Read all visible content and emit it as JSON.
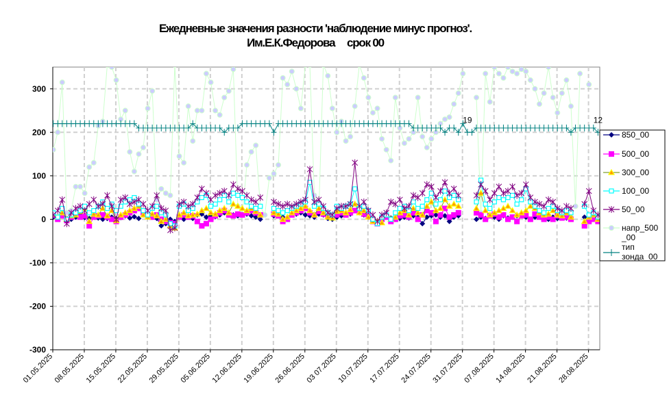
{
  "chart_data": {
    "type": "line",
    "title": [
      "Ежедневные значения разности 'наблюдение минус прогноз'.",
      "Им.Е.К.Федорова     срок 00"
    ],
    "x_range": [
      "01.05.2025",
      "31.08.2025"
    ],
    "x_step": "1 day",
    "x_tick_labels": [
      "01.05.2025",
      "08.05.2025",
      "15.05.2025",
      "22.05.2025",
      "29.05.2025",
      "05.06.2025",
      "12.06.2025",
      "19.06.2025",
      "26.06.2025",
      "03 07.2025",
      "10.07.2025",
      "17.07.2025",
      "24.07.2025",
      "31.07.2025",
      "07.08.2025",
      "14.08.2025",
      "21.08.2025",
      "28.08.2025"
    ],
    "ylim": [
      -300,
      350
    ],
    "y_ticks": [
      -300,
      -200,
      -100,
      0,
      100,
      200,
      300
    ],
    "grid": true,
    "legend_placement": "right",
    "series": [
      {
        "name": "850_00",
        "color": "#000080",
        "marker": "diamond",
        "values": [
          5,
          3,
          8,
          2,
          0,
          5,
          10,
          4,
          2,
          6,
          3,
          0,
          2,
          5,
          1,
          4,
          8,
          3,
          6,
          2,
          10,
          5,
          8,
          2,
          -15,
          -10,
          0,
          -5,
          5,
          0,
          8,
          2,
          10,
          12,
          5,
          8,
          6,
          10,
          15,
          12,
          10,
          8,
          10,
          12,
          8,
          5,
          0,
          null,
          null,
          8,
          10,
          5,
          3,
          10,
          12,
          15,
          10,
          8,
          5,
          12,
          10,
          2,
          0,
          5,
          8,
          10,
          12,
          20,
          15,
          10,
          5,
          0,
          -5,
          2,
          5,
          3,
          0,
          2,
          5,
          3,
          8,
          5,
          -10,
          5,
          8,
          10,
          5,
          8,
          -5,
          5,
          8,
          null,
          null,
          null,
          0,
          5,
          2,
          8,
          5,
          0,
          8,
          3,
          5,
          8,
          10,
          5,
          0,
          5,
          8,
          3,
          0,
          5,
          2,
          5,
          3,
          5,
          null,
          null,
          5,
          0,
          3,
          5
        ]
      },
      {
        "name": "500_00",
        "color": "#FF00FF",
        "marker": "square",
        "values": [
          10,
          0,
          8,
          -3,
          5,
          15,
          5,
          8,
          -15,
          5,
          8,
          10,
          5,
          0,
          -5,
          5,
          10,
          15,
          20,
          25,
          15,
          8,
          5,
          10,
          0,
          -5,
          -8,
          -10,
          5,
          10,
          5,
          8,
          -5,
          -15,
          -10,
          0,
          8,
          15,
          20,
          10,
          8,
          12,
          10,
          15,
          20,
          15,
          10,
          null,
          null,
          12,
          8,
          -5,
          0,
          10,
          15,
          20,
          25,
          15,
          10,
          18,
          12,
          8,
          5,
          10,
          15,
          10,
          15,
          20,
          18,
          12,
          8,
          -5,
          -10,
          0,
          5,
          -5,
          0,
          8,
          10,
          5,
          15,
          0,
          10,
          20,
          15,
          -5,
          10,
          25,
          5,
          10,
          15,
          null,
          null,
          null,
          15,
          10,
          0,
          8,
          12,
          5,
          10,
          0,
          5,
          -5,
          8,
          10,
          0,
          12,
          5,
          0,
          5,
          0,
          8,
          3,
          5,
          0,
          null,
          null,
          -15,
          -5,
          0,
          -5
        ]
      },
      {
        "name": "300_00",
        "color": "#80A030",
        "marker": "triangle",
        "values": [
          12,
          5,
          15,
          0,
          8,
          10,
          18,
          25,
          -5,
          12,
          10,
          25,
          8,
          20,
          -3,
          10,
          15,
          20,
          25,
          30,
          10,
          5,
          12,
          8,
          -5,
          0,
          -15,
          -20,
          10,
          15,
          8,
          10,
          12,
          20,
          25,
          15,
          12,
          20,
          25,
          15,
          35,
          30,
          25,
          20,
          25,
          18,
          10,
          null,
          null,
          15,
          12,
          0,
          5,
          15,
          20,
          25,
          30,
          20,
          10,
          25,
          15,
          5,
          3,
          18,
          20,
          15,
          22,
          35,
          15,
          20,
          5,
          -5,
          -5,
          -8,
          10,
          0,
          5,
          15,
          20,
          10,
          25,
          15,
          10,
          30,
          40,
          20,
          25,
          45,
          30,
          35,
          30,
          null,
          null,
          null,
          25,
          60,
          20,
          10,
          15,
          20,
          25,
          30,
          20,
          10,
          15,
          20,
          30,
          25,
          15,
          10,
          12,
          20,
          10,
          8,
          15,
          5,
          null,
          null,
          -5,
          5,
          10,
          0
        ]
      },
      {
        "name": "100_00",
        "color": "#00FFFF",
        "marker": "open-square",
        "values": [
          15,
          5,
          25,
          0,
          10,
          15,
          20,
          30,
          15,
          20,
          30,
          40,
          25,
          35,
          20,
          30,
          40,
          45,
          50,
          35,
          20,
          10,
          25,
          30,
          15,
          10,
          -10,
          -15,
          30,
          35,
          20,
          25,
          40,
          50,
          55,
          30,
          35,
          45,
          55,
          40,
          60,
          55,
          50,
          40,
          30,
          25,
          30,
          null,
          null,
          25,
          20,
          15,
          20,
          25,
          30,
          35,
          40,
          85,
          30,
          35,
          25,
          15,
          10,
          30,
          25,
          30,
          35,
          70,
          25,
          30,
          20,
          0,
          -10,
          5,
          10,
          0,
          15,
          25,
          30,
          20,
          40,
          25,
          30,
          45,
          60,
          35,
          45,
          65,
          50,
          55,
          45,
          null,
          null,
          null,
          40,
          90,
          35,
          25,
          40,
          50,
          45,
          50,
          55,
          35,
          45,
          70,
          40,
          30,
          20,
          15,
          25,
          30,
          20,
          15,
          20,
          15,
          null,
          null,
          30,
          10,
          15,
          5
        ]
      },
      {
        "name": "50_00",
        "color": "#800080",
        "marker": "asterisk",
        "values": [
          10,
          20,
          45,
          -10,
          15,
          25,
          30,
          20,
          35,
          45,
          30,
          35,
          55,
          30,
          0,
          45,
          50,
          35,
          40,
          45,
          35,
          20,
          30,
          55,
          25,
          20,
          -25,
          -20,
          35,
          40,
          30,
          35,
          50,
          70,
          60,
          45,
          55,
          60,
          65,
          55,
          80,
          70,
          65,
          55,
          45,
          40,
          50,
          null,
          null,
          40,
          35,
          30,
          35,
          30,
          35,
          40,
          45,
          115,
          40,
          45,
          30,
          15,
          10,
          25,
          30,
          30,
          35,
          130,
          30,
          40,
          20,
          10,
          -5,
          10,
          15,
          40,
          35,
          45,
          25,
          30,
          55,
          50,
          60,
          80,
          75,
          50,
          65,
          85,
          60,
          70,
          55,
          null,
          null,
          null,
          55,
          80,
          65,
          45,
          60,
          75,
          60,
          65,
          75,
          55,
          60,
          80,
          50,
          40,
          35,
          30,
          45,
          40,
          25,
          20,
          30,
          25,
          null,
          null,
          35,
          65,
          20,
          10
        ]
      },
      {
        "name": "напр_500_00",
        "color": "#CCFFCC",
        "marker_color": "#CCCCFF",
        "marker": "circle",
        "values": [
          160,
          200,
          315,
          15,
          20,
          75,
          75,
          60,
          120,
          130,
          215,
          225,
          355,
          350,
          320,
          230,
          250,
          155,
          110,
          150,
          165,
          255,
          295,
          45,
          70,
          60,
          55,
          355,
          145,
          130,
          260,
          180,
          250,
          250,
          335,
          315,
          250,
          240,
          280,
          295,
          345,
          30,
          10,
          125,
          155,
          170,
          30,
          10,
          95,
          105,
          125,
          325,
          310,
          340,
          300,
          255,
          355,
          355,
          55,
          20,
          355,
          330,
          255,
          200,
          225,
          180,
          190,
          260,
          355,
          325,
          280,
          245,
          255,
          185,
          160,
          135,
          280,
          210,
          175,
          185,
          200,
          280,
          190,
          165,
          185,
          200,
          220,
          230,
          235,
          265,
          290,
          335,
          null,
          null,
          280,
          15,
          335,
          270,
          350,
          335,
          325,
          350,
          340,
          335,
          345,
          340,
          320,
          300,
          265,
          290,
          350,
          280,
          245,
          290,
          320,
          260,
          30,
          335,
          null,
          310,
          null,
          null
        ]
      },
      {
        "name": "тип зонда_00",
        "color": "#008080",
        "marker": "plus",
        "values": [
          220,
          220,
          220,
          220,
          220,
          220,
          220,
          220,
          220,
          220,
          220,
          220,
          220,
          220,
          220,
          220,
          220,
          220,
          220,
          210,
          210,
          210,
          210,
          210,
          210,
          210,
          210,
          210,
          210,
          210,
          210,
          220,
          210,
          210,
          210,
          210,
          210,
          210,
          200,
          210,
          210,
          210,
          220,
          220,
          220,
          220,
          220,
          220,
          220,
          200,
          220,
          220,
          220,
          220,
          220,
          220,
          220,
          220,
          220,
          220,
          220,
          220,
          220,
          220,
          220,
          220,
          220,
          220,
          220,
          220,
          220,
          220,
          220,
          220,
          220,
          220,
          220,
          220,
          220,
          220,
          210,
          210,
          210,
          210,
          210,
          210,
          210,
          200,
          210,
          210,
          200,
          220,
          200,
          200,
          210,
          210,
          210,
          210,
          210,
          210,
          210,
          210,
          210,
          210,
          210,
          210,
          210,
          210,
          210,
          210,
          210,
          210,
          210,
          210,
          210,
          200,
          210,
          210,
          210,
          210,
          210,
          200
        ]
      }
    ],
    "annotations": [
      {
        "series": "тип зонда_00",
        "date": "01.08.2025",
        "text": "19"
      },
      {
        "series": "тип зонда_00",
        "date": "30.08.2025",
        "text": "12"
      }
    ],
    "legend": [
      "850_00",
      "500_00",
      "300_00",
      "100_00",
      "50_00",
      "напр_500",
      "_00",
      "тип",
      "зонда_00"
    ]
  }
}
